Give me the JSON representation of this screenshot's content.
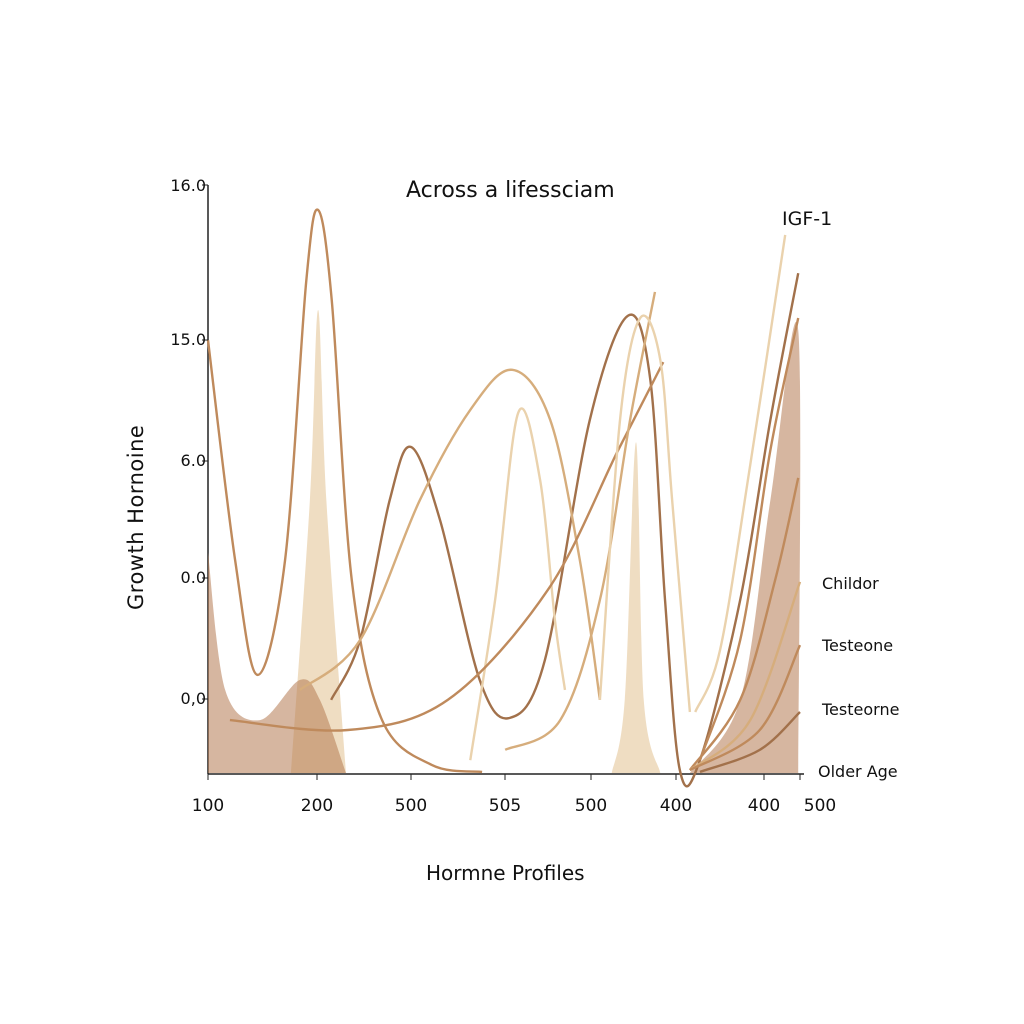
{
  "chart_data": {
    "type": "line",
    "title": "Across a lifessciam",
    "xlabel": "Hormne Profiles",
    "ylabel": "Growth  Hornoine",
    "x_tick_labels": [
      "100",
      "200",
      "500",
      "505",
      "500",
      "400",
      "400",
      "500"
    ],
    "y_tick_labels": [
      "16.0",
      "15.0",
      "6.0",
      "0.0",
      "0,0"
    ],
    "grid": false,
    "legend_placement": "right",
    "labels": [
      "IGF-1",
      "Childor",
      "Testeone",
      "Testeorne",
      "Older Age"
    ],
    "colors": {
      "dark": "#a2714b",
      "mid": "#bf8a5c",
      "tan": "#d6ad7c",
      "light": "#ead2ad",
      "fill": "#b57a52"
    },
    "series": [
      {
        "color": "mid",
        "points": [
          [
            0,
            11.78
          ],
          [
            4.6,
            5.77
          ],
          [
            8.4,
            2.67
          ],
          [
            13,
            5.77
          ],
          [
            16.6,
            13.39
          ],
          [
            18.6,
            15.32
          ],
          [
            20.9,
            12.87
          ],
          [
            24.3,
            5.23
          ],
          [
            29.4,
            1.44
          ],
          [
            37.8,
            0.22
          ],
          [
            46.3,
            0.03
          ]
        ]
      },
      {
        "color": "dark",
        "points": [
          [
            20.8,
            1.99
          ],
          [
            25.7,
            3.62
          ],
          [
            30.7,
            7.43
          ],
          [
            34.3,
            8.87
          ],
          [
            39.2,
            6.88
          ],
          [
            45.9,
            2.53
          ],
          [
            51,
            1.5
          ],
          [
            56.9,
            3.07
          ],
          [
            64.5,
            9.61
          ],
          [
            70.9,
            12.44
          ],
          [
            74.7,
            10.72
          ],
          [
            77.2,
            4.71
          ],
          [
            79.7,
            0.08
          ],
          [
            83.1,
            0.35
          ],
          [
            89.9,
            4.71
          ],
          [
            95,
            9.61
          ],
          [
            99.7,
            13.6
          ]
        ]
      },
      {
        "color": "tan",
        "points": [
          [
            15.5,
            2.26
          ],
          [
            25.7,
            3.62
          ],
          [
            35.8,
            7.43
          ],
          [
            44.3,
            9.88
          ],
          [
            51.4,
            10.97
          ],
          [
            57.8,
            9.61
          ],
          [
            62.8,
            5.8
          ],
          [
            66.2,
            1.99
          ]
        ]
      },
      {
        "color": "light",
        "points": [
          [
            44.3,
            0.35
          ],
          [
            48.5,
            4.71
          ],
          [
            52.4,
            9.8
          ],
          [
            56.1,
            7.97
          ],
          [
            58.6,
            4.16
          ],
          [
            60.3,
            2.26
          ]
        ]
      },
      {
        "color": "mid",
        "points": [
          [
            3.7,
            1.44
          ],
          [
            23.6,
            1.17
          ],
          [
            40.5,
            1.99
          ],
          [
            57.4,
            4.98
          ],
          [
            69.3,
            8.79
          ],
          [
            76.9,
            11.18
          ]
        ]
      },
      {
        "color": "tan",
        "points": [
          [
            50.2,
            0.63
          ],
          [
            59.5,
            1.44
          ],
          [
            66.2,
            4.71
          ],
          [
            71.3,
            9.61
          ],
          [
            75.5,
            13.09
          ]
        ]
      },
      {
        "color": "light",
        "points": [
          [
            66.2,
            1.99
          ],
          [
            69.6,
            9.61
          ],
          [
            73,
            12.38
          ],
          [
            76.4,
            11.24
          ],
          [
            78.4,
            7.43
          ],
          [
            81.4,
            1.66
          ]
        ]
      },
      {
        "name": "IGF-1",
        "color": "light",
        "points": [
          [
            82.3,
            1.66
          ],
          [
            86.5,
            3.35
          ],
          [
            91.6,
            8.39
          ],
          [
            97.5,
            14.64
          ]
        ]
      },
      {
        "color": "mid",
        "points": [
          [
            83.1,
            0.35
          ],
          [
            89.9,
            3.62
          ],
          [
            95,
            8.79
          ],
          [
            99.7,
            12.38
          ]
        ]
      },
      {
        "color": "mid",
        "points": [
          [
            81.4,
            0.08
          ],
          [
            89.9,
            1.99
          ],
          [
            95.8,
            5.25
          ],
          [
            99.7,
            8.03
          ]
        ]
      },
      {
        "name": "Childor",
        "color": "tan",
        "points": [
          [
            81.4,
            0.08
          ],
          [
            91.6,
            1.44
          ],
          [
            100,
            5.2
          ]
        ]
      },
      {
        "name": "Testeone",
        "color": "mid",
        "points": [
          [
            81.4,
            0.08
          ],
          [
            93.2,
            1.17
          ],
          [
            100,
            3.48
          ]
        ]
      },
      {
        "name": "Testeorne",
        "color": "dark",
        "points": [
          [
            83.1,
            0.03
          ],
          [
            93.2,
            0.63
          ],
          [
            100,
            1.66
          ]
        ]
      }
    ],
    "areas": [
      {
        "color": "light",
        "points": [
          [
            14,
            0
          ],
          [
            17.2,
            7.4
          ],
          [
            18.6,
            12.6
          ],
          [
            20,
            7.4
          ],
          [
            23.3,
            0
          ]
        ]
      },
      {
        "color": "light",
        "points": [
          [
            68.2,
            0
          ],
          [
            70.4,
            2
          ],
          [
            72.3,
            9
          ],
          [
            73.6,
            2
          ],
          [
            76.4,
            0
          ]
        ]
      },
      {
        "color": "fill",
        "points": [
          [
            0,
            6
          ],
          [
            2.9,
            2.26
          ],
          [
            8.8,
            1.44
          ],
          [
            15.5,
            2.53
          ],
          [
            18.9,
            1.99
          ],
          [
            23.3,
            0
          ]
        ]
      },
      {
        "color": "fill",
        "points": [
          [
            81.4,
            0
          ],
          [
            89.9,
            1.99
          ],
          [
            95,
            7.43
          ],
          [
            99.7,
            12.05
          ],
          [
            99.7,
            0
          ]
        ]
      }
    ],
    "xlim": [
      0,
      100
    ],
    "ylim": [
      0,
      16
    ]
  }
}
